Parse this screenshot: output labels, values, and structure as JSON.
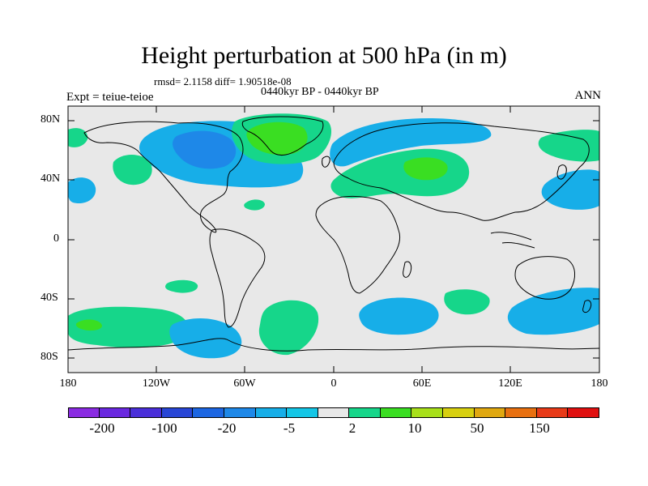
{
  "title": "Height perturbation at 500 hPa (in m)",
  "stats": "rmsd= 2.1158 diff= 1.90518e-08",
  "case_label": "0440kyr BP - 0440kyr BP",
  "experiment": "Expt = teiue-teioe",
  "season": "ANN",
  "map": {
    "background_color": "#e8e8e8",
    "lat_labels": [
      "80N",
      "40N",
      "0",
      "40S",
      "80S"
    ],
    "lon_labels": [
      "180",
      "120W",
      "60W",
      "0",
      "60E",
      "120E",
      "180"
    ]
  },
  "colorbar": {
    "colors": [
      "#8a2be2",
      "#6a28e0",
      "#4a2fd9",
      "#2846d6",
      "#1c66e2",
      "#1e88e8",
      "#17aee8",
      "#14c6e6",
      "#e8e8e8",
      "#16d68a",
      "#3ade22",
      "#a8e01a",
      "#d8d010",
      "#e0a810",
      "#e87010",
      "#e83a18",
      "#e01010"
    ],
    "labels": [
      "-200",
      "-100",
      "-20",
      "-5",
      "2",
      "10",
      "50",
      "150"
    ]
  }
}
